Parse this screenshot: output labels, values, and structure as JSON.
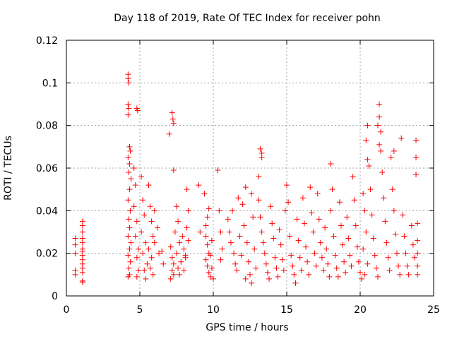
{
  "chart_data": {
    "type": "scatter",
    "title": "Day 118 of 2019, Rate Of TEC Index for receiver pohn",
    "xlabel": "GPS time / hours",
    "ylabel": "ROTI / TECUs",
    "xlim": [
      0,
      25
    ],
    "ylim": [
      0,
      0.12
    ],
    "grid": true,
    "marker": "+",
    "color": "#ff0000",
    "x_ticks": [
      0,
      5,
      10,
      15,
      20,
      25
    ],
    "x_tick_labels": [
      "0",
      "5",
      "10",
      "15",
      "20",
      "25"
    ],
    "y_ticks": [
      0,
      0.02,
      0.04,
      0.06,
      0.08,
      0.1,
      0.12
    ],
    "y_tick_labels": [
      "0",
      "0.02",
      "0.04",
      "0.06",
      "0.08",
      "0.1",
      "0.12"
    ],
    "series": [
      {
        "name": "ROTI",
        "points": [
          [
            0.6,
            0.027
          ],
          [
            0.6,
            0.024
          ],
          [
            0.6,
            0.02
          ],
          [
            0.6,
            0.012
          ],
          [
            0.6,
            0.01
          ],
          [
            1.1,
            0.035
          ],
          [
            1.1,
            0.033
          ],
          [
            1.1,
            0.03
          ],
          [
            1.1,
            0.027
          ],
          [
            1.1,
            0.025
          ],
          [
            1.1,
            0.022
          ],
          [
            1.1,
            0.021
          ],
          [
            1.1,
            0.019
          ],
          [
            1.1,
            0.017
          ],
          [
            1.1,
            0.015
          ],
          [
            1.1,
            0.013
          ],
          [
            1.1,
            0.011
          ],
          [
            1.1,
            0.007
          ],
          [
            1.1,
            0.0065
          ],
          [
            4.2,
            0.104
          ],
          [
            4.2,
            0.102
          ],
          [
            4.25,
            0.1
          ],
          [
            4.2,
            0.09
          ],
          [
            4.25,
            0.088
          ],
          [
            4.2,
            0.085
          ],
          [
            4.3,
            0.07
          ],
          [
            4.35,
            0.068
          ],
          [
            4.2,
            0.065
          ],
          [
            4.3,
            0.062
          ],
          [
            4.25,
            0.058
          ],
          [
            4.4,
            0.055
          ],
          [
            4.3,
            0.05
          ],
          [
            4.2,
            0.045
          ],
          [
            4.35,
            0.04
          ],
          [
            4.25,
            0.036
          ],
          [
            4.3,
            0.032
          ],
          [
            4.2,
            0.028
          ],
          [
            4.4,
            0.025
          ],
          [
            4.3,
            0.022
          ],
          [
            4.2,
            0.019
          ],
          [
            4.35,
            0.016
          ],
          [
            4.25,
            0.013
          ],
          [
            4.3,
            0.01
          ],
          [
            4.2,
            0.009
          ],
          [
            4.6,
            0.06
          ],
          [
            4.7,
            0.052
          ],
          [
            4.6,
            0.042
          ],
          [
            4.8,
            0.035
          ],
          [
            4.7,
            0.028
          ],
          [
            4.9,
            0.022
          ],
          [
            4.8,
            0.018
          ],
          [
            4.9,
            0.012
          ],
          [
            4.8,
            0.009
          ],
          [
            4.8,
            0.088
          ],
          [
            4.85,
            0.087
          ],
          [
            5.1,
            0.056
          ],
          [
            5.2,
            0.045
          ],
          [
            5.3,
            0.038
          ],
          [
            5.1,
            0.03
          ],
          [
            5.4,
            0.025
          ],
          [
            5.2,
            0.02
          ],
          [
            5.5,
            0.015
          ],
          [
            5.3,
            0.012
          ],
          [
            5.4,
            0.008
          ],
          [
            5.6,
            0.052
          ],
          [
            5.7,
            0.042
          ],
          [
            5.8,
            0.035
          ],
          [
            5.9,
            0.028
          ],
          [
            5.6,
            0.022
          ],
          [
            5.8,
            0.018
          ],
          [
            5.7,
            0.013
          ],
          [
            5.9,
            0.01
          ],
          [
            6.0,
            0.04
          ],
          [
            6.0,
            0.025
          ],
          [
            6.2,
            0.032
          ],
          [
            6.3,
            0.02
          ],
          [
            6.5,
            0.021
          ],
          [
            6.6,
            0.015
          ],
          [
            7.0,
            0.076
          ],
          [
            7.2,
            0.086
          ],
          [
            7.25,
            0.083
          ],
          [
            7.3,
            0.081
          ],
          [
            7.1,
            0.023
          ],
          [
            7.2,
            0.018
          ],
          [
            7.3,
            0.015
          ],
          [
            7.2,
            0.012
          ],
          [
            7.3,
            0.01
          ],
          [
            7.1,
            0.008
          ],
          [
            7.3,
            0.059
          ],
          [
            7.5,
            0.042
          ],
          [
            7.6,
            0.035
          ],
          [
            7.4,
            0.03
          ],
          [
            7.7,
            0.025
          ],
          [
            7.5,
            0.02
          ],
          [
            7.8,
            0.016
          ],
          [
            7.6,
            0.013
          ],
          [
            7.7,
            0.01
          ],
          [
            7.9,
            0.028
          ],
          [
            8.0,
            0.022
          ],
          [
            8.1,
            0.018
          ],
          [
            8.2,
            0.05
          ],
          [
            8.3,
            0.04
          ],
          [
            8.0,
            0.012
          ],
          [
            8.2,
            0.032
          ],
          [
            8.3,
            0.026
          ],
          [
            8.1,
            0.019
          ],
          [
            9.0,
            0.052
          ],
          [
            9.1,
            0.03
          ],
          [
            9.4,
            0.048
          ],
          [
            9.5,
            0.033
          ],
          [
            9.6,
            0.037
          ],
          [
            9.7,
            0.041
          ],
          [
            9.5,
            0.028
          ],
          [
            9.6,
            0.024
          ],
          [
            9.7,
            0.02
          ],
          [
            9.5,
            0.017
          ],
          [
            9.6,
            0.014
          ],
          [
            9.7,
            0.011
          ],
          [
            9.8,
            0.009
          ],
          [
            9.9,
            0.026
          ],
          [
            9.8,
            0.019
          ],
          [
            9.9,
            0.013
          ],
          [
            10.0,
            0.008
          ],
          [
            10.3,
            0.059
          ],
          [
            10.4,
            0.04
          ],
          [
            10.5,
            0.03
          ],
          [
            10.6,
            0.022
          ],
          [
            10.5,
            0.017
          ],
          [
            11.0,
            0.036
          ],
          [
            11.1,
            0.03
          ],
          [
            11.2,
            0.025
          ],
          [
            11.3,
            0.04
          ],
          [
            11.4,
            0.02
          ],
          [
            11.5,
            0.015
          ],
          [
            11.6,
            0.012
          ],
          [
            11.7,
            0.046
          ],
          [
            11.8,
            0.028
          ],
          [
            11.9,
            0.019
          ],
          [
            12.0,
            0.043
          ],
          [
            12.1,
            0.033
          ],
          [
            12.2,
            0.051
          ],
          [
            12.3,
            0.025
          ],
          [
            12.4,
            0.016
          ],
          [
            12.5,
            0.01
          ],
          [
            12.6,
            0.048
          ],
          [
            12.7,
            0.037
          ],
          [
            12.8,
            0.022
          ],
          [
            12.9,
            0.013
          ],
          [
            12.2,
            0.008
          ],
          [
            12.6,
            0.006
          ],
          [
            13.1,
            0.056
          ],
          [
            13.2,
            0.069
          ],
          [
            13.3,
            0.067
          ],
          [
            13.3,
            0.065
          ],
          [
            13.1,
            0.045
          ],
          [
            13.2,
            0.037
          ],
          [
            13.3,
            0.03
          ],
          [
            13.4,
            0.025
          ],
          [
            13.5,
            0.02
          ],
          [
            13.6,
            0.015
          ],
          [
            13.7,
            0.011
          ],
          [
            13.8,
            0.008
          ],
          [
            13.9,
            0.042
          ],
          [
            14.0,
            0.034
          ],
          [
            14.1,
            0.027
          ],
          [
            14.2,
            0.018
          ],
          [
            14.3,
            0.013
          ],
          [
            14.4,
            0.009
          ],
          [
            14.5,
            0.031
          ],
          [
            14.6,
            0.024
          ],
          [
            14.7,
            0.017
          ],
          [
            14.8,
            0.012
          ],
          [
            14.9,
            0.04
          ],
          [
            15.0,
            0.052
          ],
          [
            15.1,
            0.044
          ],
          [
            15.2,
            0.028
          ],
          [
            15.3,
            0.019
          ],
          [
            15.4,
            0.014
          ],
          [
            15.5,
            0.01
          ],
          [
            15.6,
            0.006
          ],
          [
            15.7,
            0.036
          ],
          [
            15.8,
            0.026
          ],
          [
            15.9,
            0.018
          ],
          [
            16.0,
            0.012
          ],
          [
            16.1,
            0.046
          ],
          [
            16.2,
            0.034
          ],
          [
            16.3,
            0.023
          ],
          [
            16.4,
            0.016
          ],
          [
            16.5,
            0.01
          ],
          [
            16.6,
            0.051
          ],
          [
            16.7,
            0.039
          ],
          [
            16.8,
            0.03
          ],
          [
            16.9,
            0.02
          ],
          [
            17.0,
            0.014
          ],
          [
            17.1,
            0.048
          ],
          [
            17.2,
            0.036
          ],
          [
            17.3,
            0.025
          ],
          [
            17.4,
            0.018
          ],
          [
            17.5,
            0.012
          ],
          [
            17.6,
            0.032
          ],
          [
            17.7,
            0.022
          ],
          [
            17.8,
            0.015
          ],
          [
            17.9,
            0.009
          ],
          [
            18.0,
            0.062
          ],
          [
            18.1,
            0.05
          ],
          [
            18.0,
            0.04
          ],
          [
            18.2,
            0.028
          ],
          [
            18.3,
            0.019
          ],
          [
            18.4,
            0.013
          ],
          [
            18.5,
            0.009
          ],
          [
            18.6,
            0.044
          ],
          [
            18.7,
            0.033
          ],
          [
            18.8,
            0.024
          ],
          [
            18.9,
            0.016
          ],
          [
            19.0,
            0.011
          ],
          [
            19.1,
            0.037
          ],
          [
            19.2,
            0.027
          ],
          [
            19.3,
            0.019
          ],
          [
            19.4,
            0.014
          ],
          [
            19.5,
            0.056
          ],
          [
            19.6,
            0.045
          ],
          [
            19.7,
            0.033
          ],
          [
            19.8,
            0.023
          ],
          [
            19.9,
            0.016
          ],
          [
            20.0,
            0.011
          ],
          [
            20.1,
            0.008
          ],
          [
            20.2,
            0.048
          ],
          [
            20.3,
            0.04
          ],
          [
            20.4,
            0.03
          ],
          [
            20.2,
            0.022
          ],
          [
            20.5,
            0.015
          ],
          [
            20.3,
            0.01
          ],
          [
            20.4,
            0.073
          ],
          [
            20.5,
            0.08
          ],
          [
            20.5,
            0.064
          ],
          [
            20.6,
            0.061
          ],
          [
            20.7,
            0.05
          ],
          [
            20.8,
            0.038
          ],
          [
            20.9,
            0.027
          ],
          [
            21.0,
            0.019
          ],
          [
            21.1,
            0.013
          ],
          [
            21.2,
            0.009
          ],
          [
            21.3,
            0.09
          ],
          [
            21.3,
            0.084
          ],
          [
            21.2,
            0.08
          ],
          [
            21.4,
            0.077
          ],
          [
            21.3,
            0.071
          ],
          [
            21.4,
            0.068
          ],
          [
            21.5,
            0.058
          ],
          [
            21.6,
            0.046
          ],
          [
            21.7,
            0.035
          ],
          [
            21.8,
            0.025
          ],
          [
            21.9,
            0.018
          ],
          [
            22.0,
            0.012
          ],
          [
            22.1,
            0.065
          ],
          [
            22.3,
            0.068
          ],
          [
            22.2,
            0.05
          ],
          [
            22.3,
            0.04
          ],
          [
            22.4,
            0.029
          ],
          [
            22.5,
            0.02
          ],
          [
            22.6,
            0.014
          ],
          [
            22.7,
            0.01
          ],
          [
            22.8,
            0.074
          ],
          [
            22.9,
            0.038
          ],
          [
            23.0,
            0.028
          ],
          [
            23.1,
            0.02
          ],
          [
            23.2,
            0.014
          ],
          [
            23.3,
            0.01
          ],
          [
            23.5,
            0.033
          ],
          [
            23.6,
            0.024
          ],
          [
            23.7,
            0.018
          ],
          [
            23.8,
            0.073
          ],
          [
            23.8,
            0.065
          ],
          [
            23.8,
            0.057
          ],
          [
            23.9,
            0.034
          ],
          [
            23.9,
            0.026
          ],
          [
            23.9,
            0.02
          ],
          [
            23.9,
            0.014
          ],
          [
            23.9,
            0.01
          ]
        ]
      }
    ]
  }
}
